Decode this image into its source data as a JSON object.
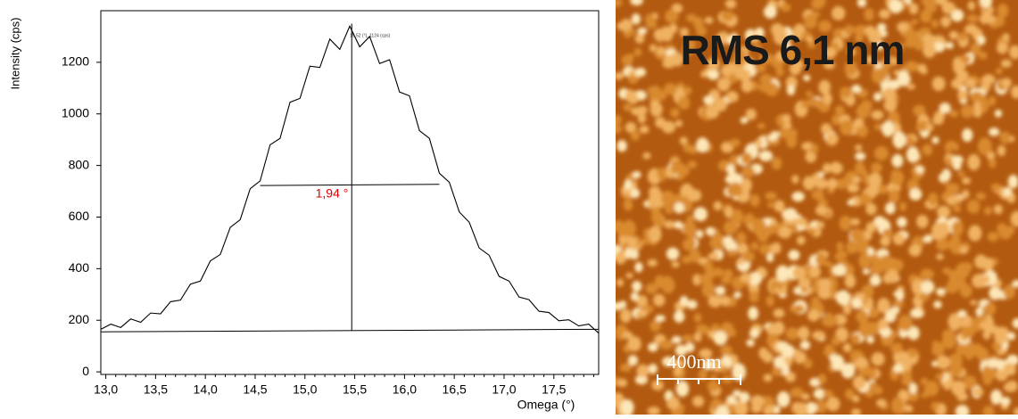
{
  "chart_data": {
    "type": "line",
    "ylabel": "Intensity (cps)",
    "xlabel": "Omega (°)",
    "x": [
      12.95,
      13.05,
      13.15,
      13.25,
      13.35,
      13.45,
      13.55,
      13.65,
      13.75,
      13.85,
      13.95,
      14.05,
      14.15,
      14.25,
      14.35,
      14.45,
      14.55,
      14.65,
      14.75,
      14.85,
      14.95,
      15.05,
      15.15,
      15.25,
      15.35,
      15.45,
      15.55,
      15.65,
      15.75,
      15.85,
      15.95,
      16.05,
      16.15,
      16.25,
      16.35,
      16.45,
      16.55,
      16.65,
      16.75,
      16.85,
      16.95,
      17.05,
      17.15,
      17.25,
      17.35,
      17.45,
      17.55,
      17.65,
      17.75,
      17.85,
      17.95
    ],
    "series": [
      {
        "color": "#000000",
        "values": [
          165,
          185,
          172,
          205,
          192,
          228,
          225,
          272,
          278,
          340,
          352,
          430,
          455,
          560,
          590,
          710,
          740,
          880,
          905,
          1045,
          1060,
          1185,
          1180,
          1290,
          1250,
          1340,
          1260,
          1300,
          1195,
          1210,
          1085,
          1070,
          935,
          905,
          770,
          735,
          620,
          580,
          480,
          452,
          370,
          352,
          290,
          280,
          235,
          230,
          198,
          202,
          178,
          185,
          150
        ]
      }
    ],
    "annotation_lines": [
      {
        "x": [
          12.95,
          17.95
        ],
        "y": [
          155,
          165
        ]
      },
      {
        "x": [
          14.55,
          16.35
        ],
        "y": [
          722,
          727
        ]
      },
      {
        "x": [
          15.47,
          15.47
        ],
        "y": [
          160,
          1350
        ]
      }
    ],
    "annotations": [
      "1,94 °",
      "15,52 (°), 1124 (cps)"
    ],
    "xlim": [
      12.95,
      17.95
    ],
    "ylim": [
      -10,
      1400
    ],
    "xticks": [
      {
        "value": 13,
        "label": "13,0"
      },
      {
        "value": 13.5,
        "label": "13,5"
      },
      {
        "value": 14,
        "label": "14,0"
      },
      {
        "value": 14.5,
        "label": "14,5"
      },
      {
        "value": 15,
        "label": "15,0"
      },
      {
        "value": 15.5,
        "label": "15,5"
      },
      {
        "value": 16,
        "label": "16,0"
      },
      {
        "value": 16.5,
        "label": "16,5"
      },
      {
        "value": 17,
        "label": "17,0"
      },
      {
        "value": 17.5,
        "label": "17,5"
      }
    ],
    "yticks": [
      0,
      200,
      400,
      600,
      800,
      1000,
      1200
    ],
    "grid": false
  },
  "afm_image": {
    "title": "RMS 6,1 nm",
    "scale_bar": "400nm"
  }
}
